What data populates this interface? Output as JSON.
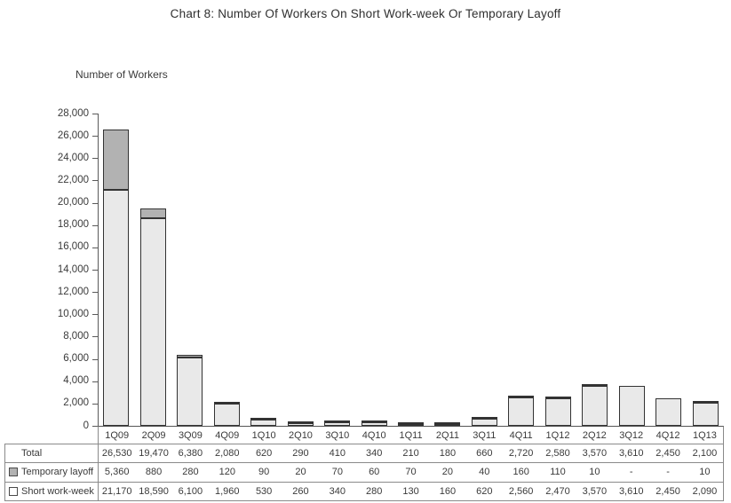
{
  "colors": {
    "background": "#ffffff",
    "text": "#3a3a3a",
    "axis": "#5a5a5a",
    "table_border": "#8a8a8a",
    "bar_border": "#333333",
    "short_work_week_fill": "#e9e9e9",
    "temporary_layoff_fill": "#b2b2b2"
  },
  "chart_data": {
    "type": "bar",
    "stacked": true,
    "title": "Chart 8: Number Of Workers On Short Work-week Or Temporary Layoff",
    "ylabel": "Number of Workers",
    "xlabel": "",
    "ylim": [
      0,
      28000
    ],
    "ytick_step": 2000,
    "grid": false,
    "legend_position": "data-table-left-keys",
    "categories": [
      "1Q09",
      "2Q09",
      "3Q09",
      "4Q09",
      "1Q10",
      "2Q10",
      "3Q10",
      "4Q10",
      "1Q11",
      "2Q11",
      "3Q11",
      "4Q11",
      "1Q12",
      "2Q12",
      "3Q12",
      "4Q12",
      "1Q13"
    ],
    "yticks": {
      "values": [
        0,
        2000,
        4000,
        6000,
        8000,
        10000,
        12000,
        14000,
        16000,
        18000,
        20000,
        22000,
        24000,
        26000,
        28000
      ],
      "labels": [
        "0",
        "2,000",
        "4,000",
        "6,000",
        "8,000",
        "10,000",
        "12,000",
        "14,000",
        "16,000",
        "18,000",
        "20,000",
        "22,000",
        "24,000",
        "26,000",
        "28,000"
      ]
    },
    "series": [
      {
        "name": "Short work-week",
        "color": "#e9e9e9",
        "values": [
          21170,
          18590,
          6100,
          1960,
          530,
          260,
          340,
          280,
          130,
          160,
          620,
          2560,
          2470,
          3570,
          3610,
          2450,
          2090
        ]
      },
      {
        "name": "Temporary layoff",
        "color": "#b2b2b2",
        "values": [
          5360,
          880,
          280,
          120,
          90,
          20,
          70,
          60,
          70,
          20,
          40,
          160,
          110,
          10,
          0,
          0,
          10
        ]
      }
    ],
    "totals": [
      26530,
      19470,
      6380,
      2080,
      620,
      290,
      410,
      340,
      210,
      180,
      660,
      2720,
      2580,
      3570,
      3610,
      2450,
      2100
    ],
    "table": {
      "rows": [
        {
          "label": "Total",
          "key": "total",
          "marker": null,
          "values": [
            "26,530",
            "19,470",
            "6,380",
            "2,080",
            "620",
            "290",
            "410",
            "340",
            "210",
            "180",
            "660",
            "2,720",
            "2,580",
            "3,570",
            "3,610",
            "2,450",
            "2,100"
          ]
        },
        {
          "label": "Temporary layoff",
          "key": "temporary-layoff",
          "marker": "#b2b2b2",
          "values": [
            "5,360",
            "880",
            "280",
            "120",
            "90",
            "20",
            "70",
            "60",
            "70",
            "20",
            "40",
            "160",
            "110",
            "10",
            "-",
            "-",
            "10"
          ]
        },
        {
          "label": "Short work-week",
          "key": "short-work-week",
          "marker": "#ffffff",
          "values": [
            "21,170",
            "18,590",
            "6,100",
            "1,960",
            "530",
            "260",
            "340",
            "280",
            "130",
            "160",
            "620",
            "2,560",
            "2,470",
            "3,570",
            "3,610",
            "2,450",
            "2,090"
          ]
        }
      ]
    }
  }
}
